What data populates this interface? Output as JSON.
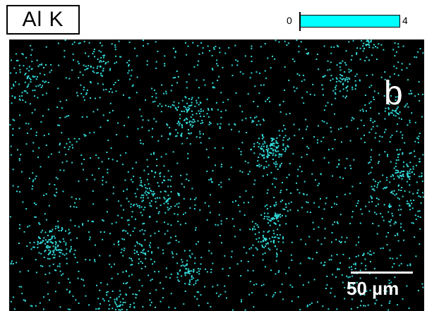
{
  "element_map": {
    "label": "Al K",
    "panel_letter": "b",
    "dot_color": "#33dddd",
    "background_color": "#000000"
  },
  "legend": {
    "min_label": "0",
    "max_label": "4",
    "bar_color": "#00ffff"
  },
  "scale_bar": {
    "label": "50 µm",
    "color": "#ffffff"
  }
}
